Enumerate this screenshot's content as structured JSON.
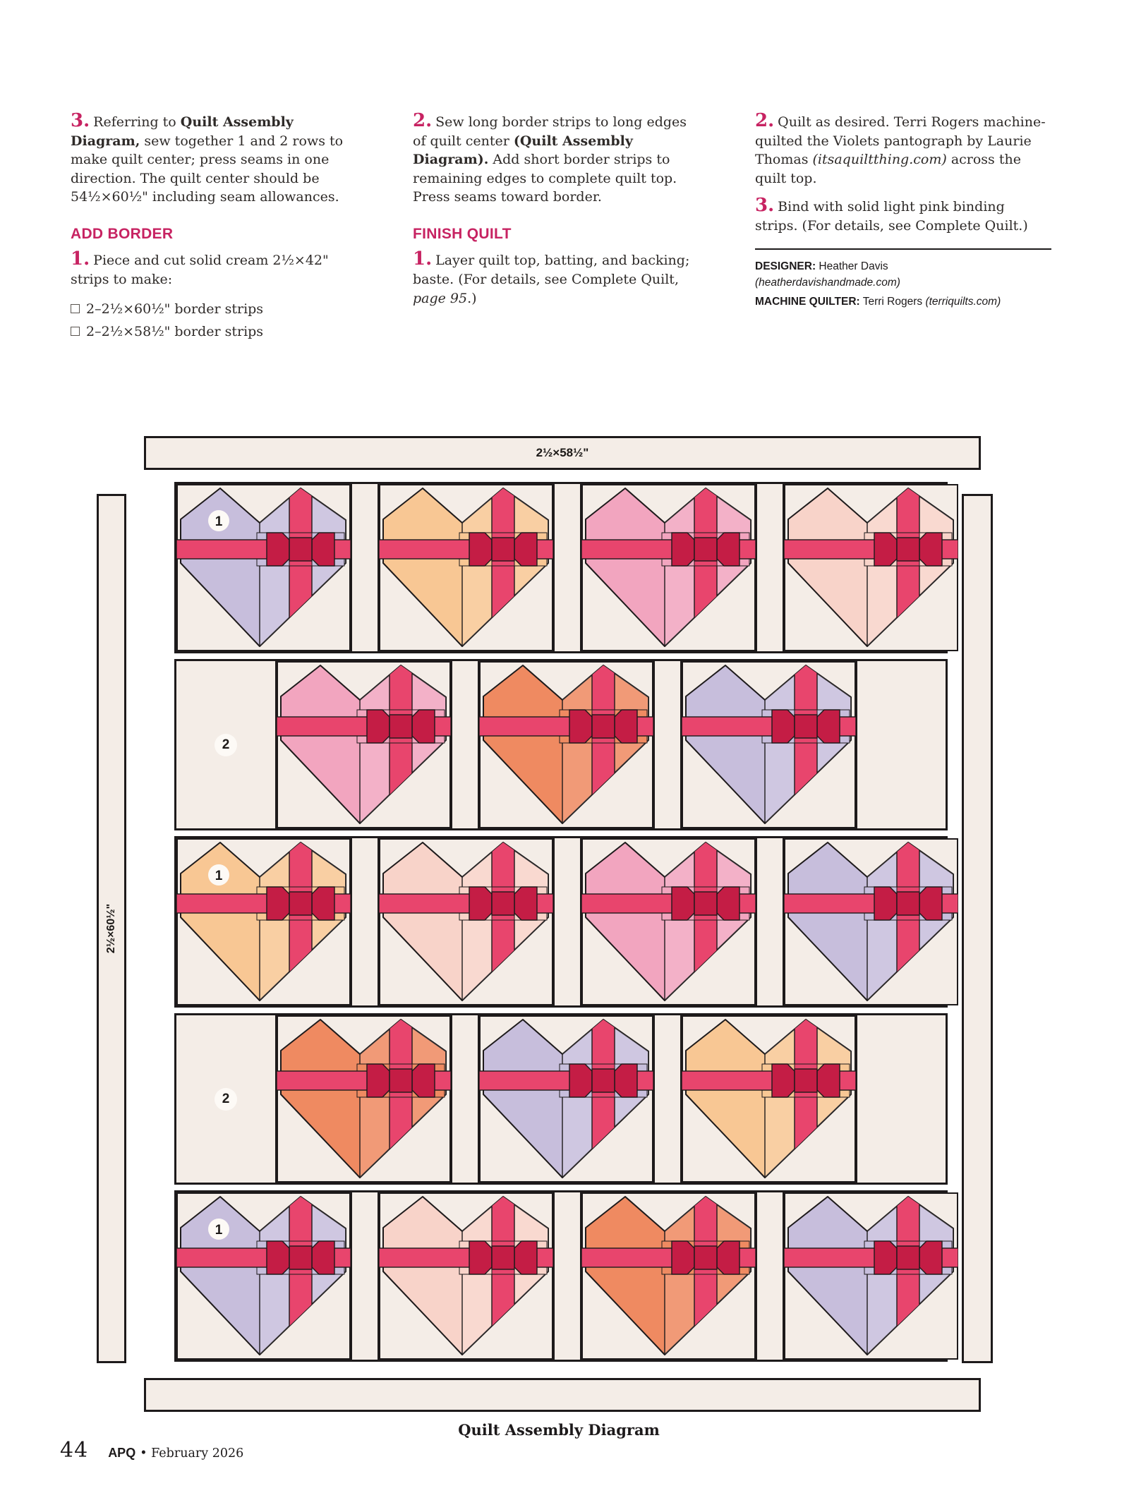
{
  "columns": [
    {
      "blocks": [
        {
          "kind": "step",
          "num": "3.",
          "segments": [
            {
              "t": "Referring to "
            },
            {
              "t": "Quilt Assembly Diagram,",
              "b": 1
            },
            {
              "t": " sew together 1 and 2 rows to make quilt center; press seams in one direction. The quilt center should be 54½×60½\" including seam allowances."
            }
          ]
        },
        {
          "kind": "heading",
          "text": "ADD BORDER"
        },
        {
          "kind": "step",
          "num": "1.",
          "segments": [
            {
              "t": "Piece and cut solid cream 2½×42\" strips to make:"
            }
          ]
        },
        {
          "kind": "check",
          "text": "2–2½×60½\" border strips"
        },
        {
          "kind": "check",
          "text": "2–2½×58½\" border strips"
        }
      ]
    },
    {
      "blocks": [
        {
          "kind": "step",
          "num": "2.",
          "segments": [
            {
              "t": "Sew long border strips to long edges of quilt center "
            },
            {
              "t": "(Quilt Assembly Diagram).",
              "b": 1
            },
            {
              "t": " Add short border strips to remaining edges to complete quilt top. Press seams toward border."
            }
          ]
        },
        {
          "kind": "heading",
          "text": "FINISH QUILT"
        },
        {
          "kind": "step",
          "num": "1.",
          "segments": [
            {
              "t": "Layer quilt top, batting, and backing; baste. (For details, see Complete Quilt, "
            },
            {
              "t": "page 95",
              "i": 1
            },
            {
              "t": ".)"
            }
          ]
        }
      ]
    },
    {
      "blocks": [
        {
          "kind": "step",
          "num": "2.",
          "segments": [
            {
              "t": "Quilt as desired. Terri Rogers machine-quilted the Violets pantograph by Laurie Thomas "
            },
            {
              "t": "(itsaquiltthing.com)",
              "i": 1
            },
            {
              "t": " across the quilt top."
            }
          ]
        },
        {
          "kind": "step",
          "num": "3.",
          "segments": [
            {
              "t": "Bind with solid light pink binding strips. (For details, see Complete Quilt.)"
            }
          ]
        },
        {
          "kind": "rule"
        },
        {
          "kind": "credits",
          "lines": [
            {
              "segments": [
                {
                  "t": "DESIGNER:",
                  "b": 1
                },
                {
                  "t": " Heather Davis"
                },
                {
                  "t": "(heatherdavishandmade.com)",
                  "i": 1,
                  "br": 1
                }
              ]
            },
            {
              "segments": [
                {
                  "t": "MACHINE QUILTER:",
                  "b": 1
                },
                {
                  "t": " Terri Rogers "
                },
                {
                  "t": "(terriquilts.com)",
                  "i": 1
                }
              ]
            }
          ]
        }
      ]
    }
  ],
  "diagram": {
    "top_border_label": "2½×58½\"",
    "left_border_label": "2½×60½\"",
    "caption": "Quilt Assembly Diagram",
    "palette": {
      "cream": "#f4ede7",
      "outline": "#1d1a1b",
      "ribbon": "#e8456d",
      "bow": "#c41d45",
      "lavender": "#c7bedc",
      "peach": "#f8c794",
      "pink": "#f2a5bf",
      "blush": "#f8d3c9",
      "orange": "#ef8a61"
    },
    "rows": [
      {
        "label": "1",
        "type": "full",
        "hearts": [
          "lavender",
          "peach",
          "pink",
          "blush"
        ]
      },
      {
        "label": "2",
        "type": "offset",
        "hearts": [
          "pink",
          "orange",
          "lavender"
        ]
      },
      {
        "label": "1",
        "type": "full",
        "hearts": [
          "peach",
          "blush",
          "pink",
          "lavender"
        ]
      },
      {
        "label": "2",
        "type": "offset",
        "hearts": [
          "orange",
          "lavender",
          "peach"
        ]
      },
      {
        "label": "1",
        "type": "full",
        "hearts": [
          "lavender",
          "blush",
          "orange",
          "lavender"
        ]
      }
    ]
  },
  "footer": {
    "page_number": "44",
    "magazine": "APQ",
    "separator": "•",
    "issue": "February 2026"
  }
}
